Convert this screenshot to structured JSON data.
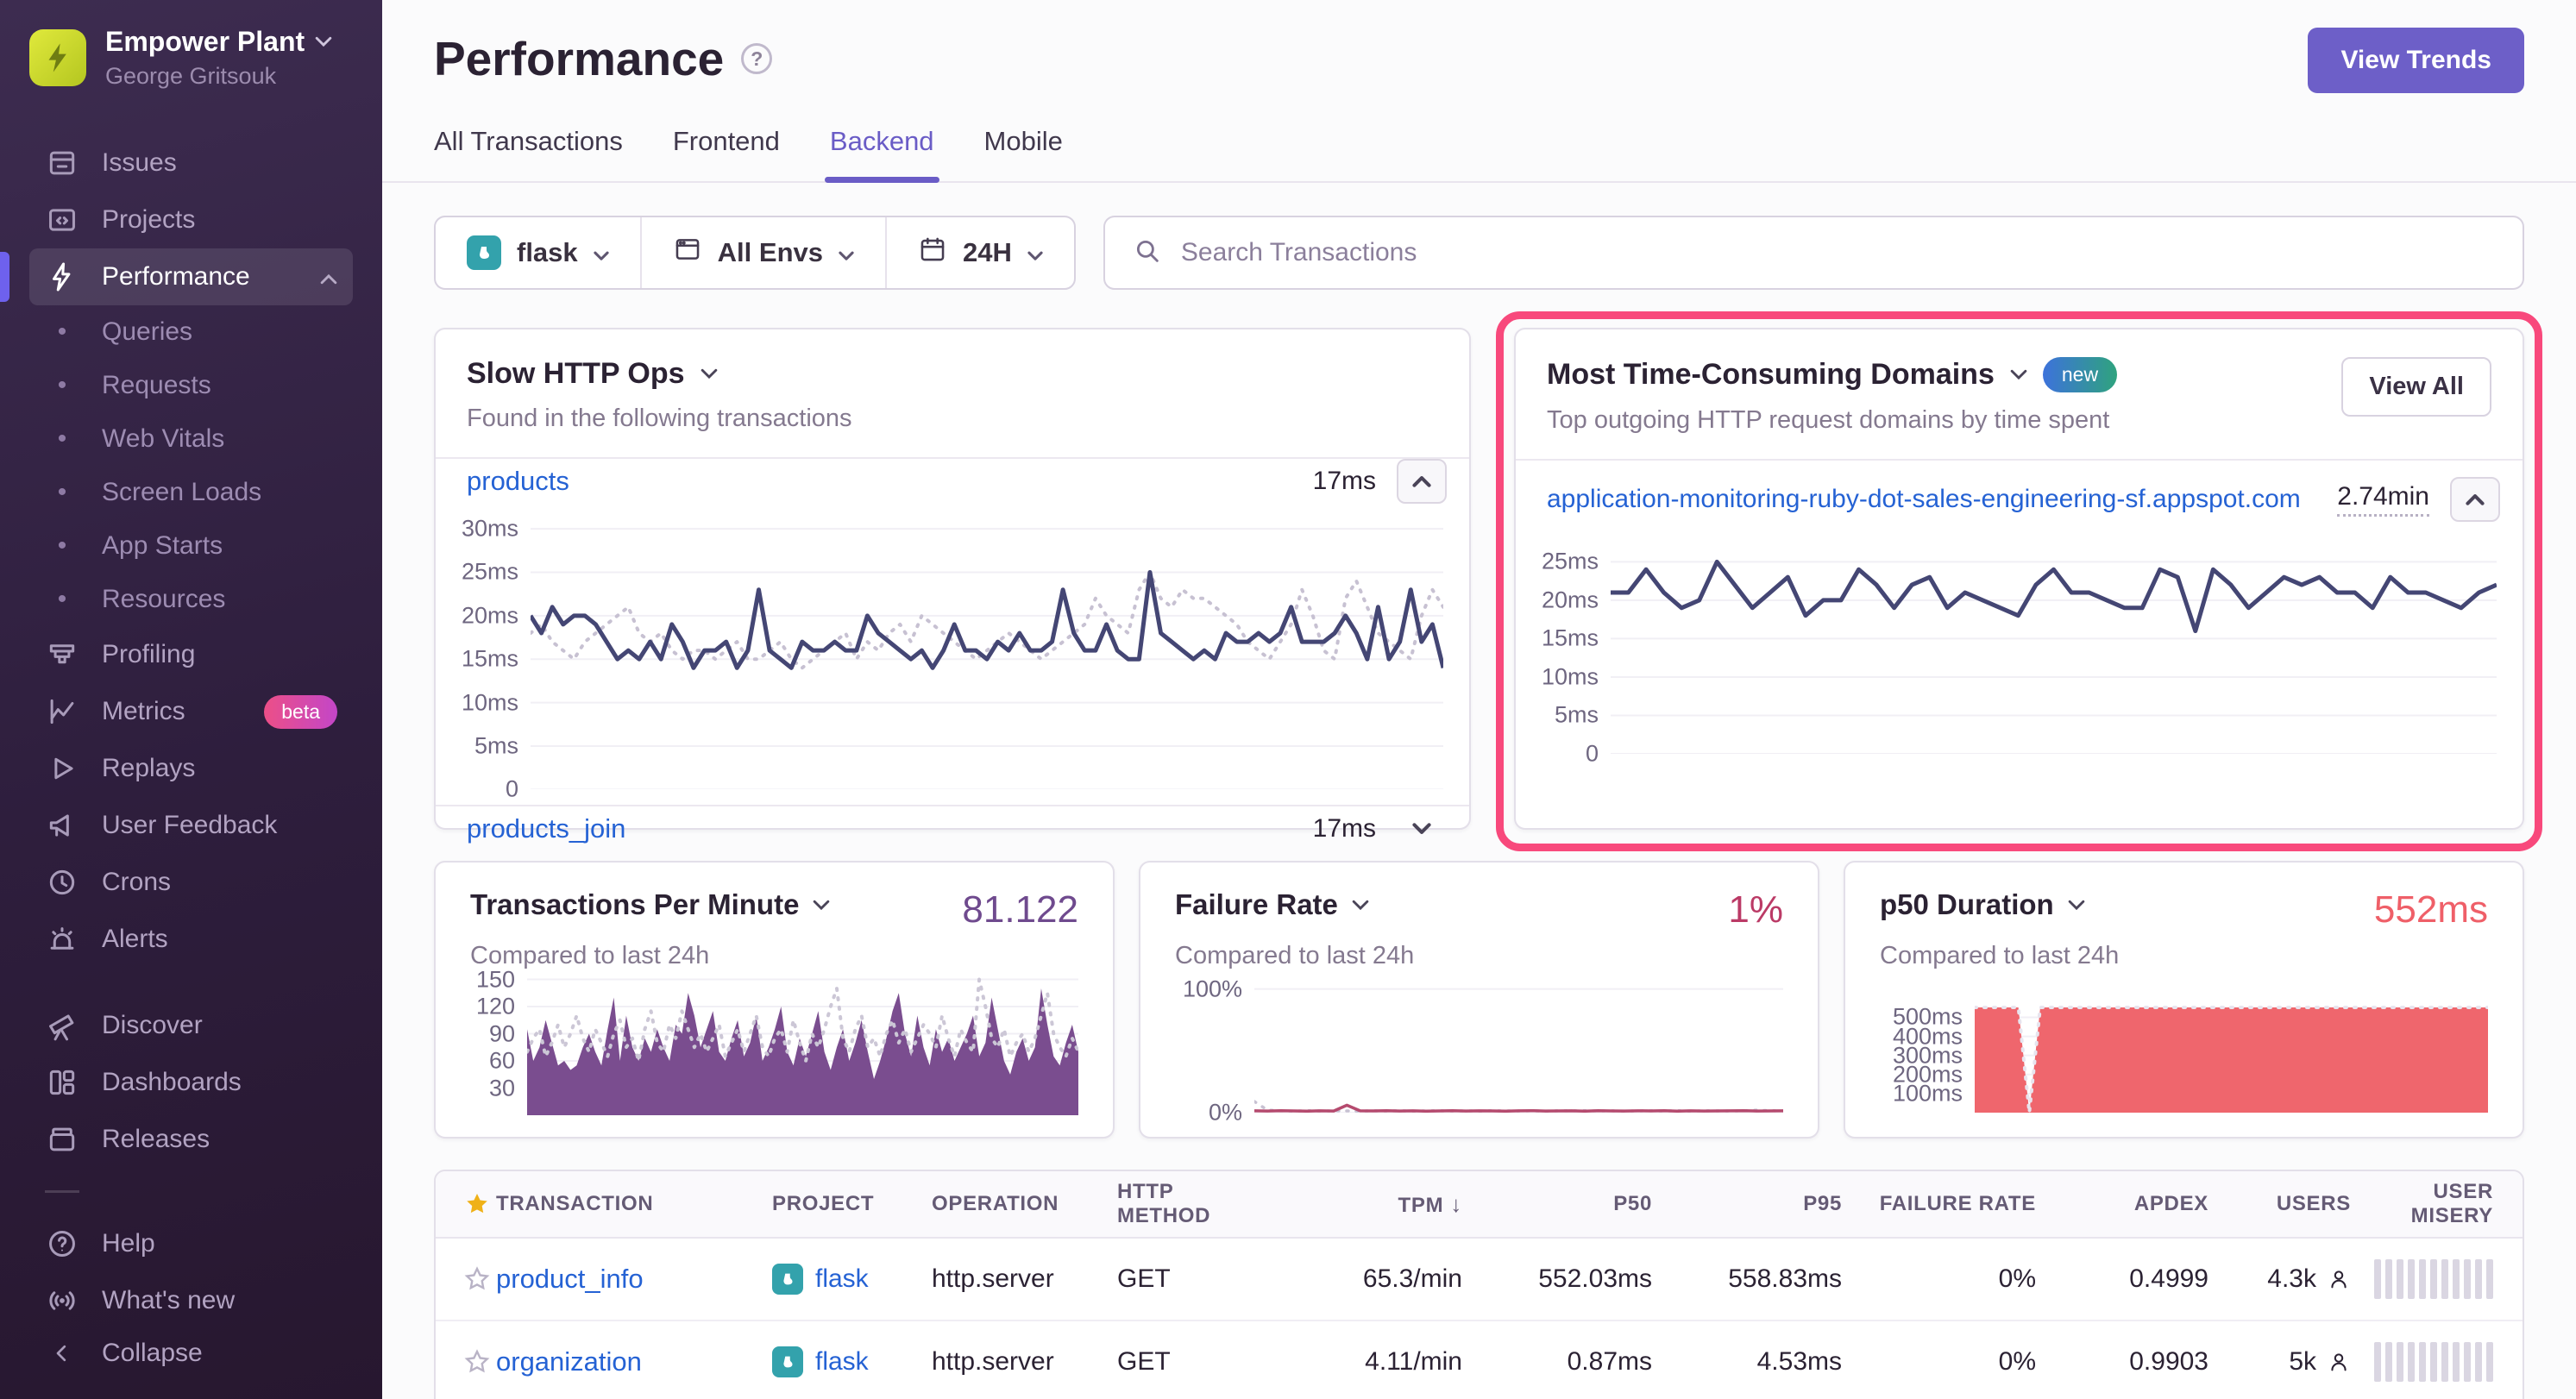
{
  "sidebar": {
    "org_name": "Empower Plant",
    "user_name": "George Gritsouk",
    "primary": [
      {
        "label": "Issues",
        "icon": "issues-icon"
      },
      {
        "label": "Projects",
        "icon": "projects-icon"
      }
    ],
    "performance": {
      "label": "Performance",
      "icon": "lightning-icon"
    },
    "performance_children": [
      {
        "label": "Queries"
      },
      {
        "label": "Requests"
      },
      {
        "label": "Web Vitals"
      },
      {
        "label": "Screen Loads"
      },
      {
        "label": "App Starts"
      },
      {
        "label": "Resources"
      }
    ],
    "secondary": [
      {
        "label": "Profiling",
        "icon": "profiling-icon"
      },
      {
        "label": "Metrics",
        "icon": "metrics-icon",
        "badge": "beta"
      },
      {
        "label": "Replays",
        "icon": "replays-icon"
      },
      {
        "label": "User Feedback",
        "icon": "megaphone-icon"
      },
      {
        "label": "Crons",
        "icon": "clock-icon"
      },
      {
        "label": "Alerts",
        "icon": "siren-icon"
      }
    ],
    "tertiary": [
      {
        "label": "Discover",
        "icon": "telescope-icon"
      },
      {
        "label": "Dashboards",
        "icon": "dashboards-icon"
      },
      {
        "label": "Releases",
        "icon": "releases-icon"
      }
    ],
    "footer": [
      {
        "label": "Help",
        "icon": "help-icon"
      },
      {
        "label": "What's new",
        "icon": "broadcast-icon"
      }
    ],
    "collapse_label": "Collapse"
  },
  "header": {
    "title": "Performance",
    "tabs": [
      "All Transactions",
      "Frontend",
      "Backend",
      "Mobile"
    ],
    "active_tab": "Backend",
    "view_trends_label": "View Trends"
  },
  "icons": {
    "help_glyph": "?"
  },
  "filters": {
    "project": "flask",
    "environment": "All Envs",
    "date_range": "24H",
    "search_placeholder": "Search Transactions"
  },
  "cards": {
    "slow_http": {
      "title": "Slow HTTP Ops",
      "subtitle": "Found in the following transactions",
      "rows": [
        {
          "name": "products",
          "value": "17ms"
        },
        {
          "name": "products_join",
          "value": "17ms"
        }
      ]
    },
    "domains": {
      "title": "Most Time-Consuming Domains",
      "badge": "new",
      "button_label": "View All",
      "subtitle": "Top outgoing HTTP request domains by time spent",
      "rows": [
        {
          "name": "application-monitoring-ruby-dot-sales-engineering-sf.appspot.com",
          "value": "2.74min"
        }
      ]
    },
    "tpm": {
      "title": "Transactions Per Minute",
      "value": "81.122",
      "subtitle": "Compared to last 24h"
    },
    "failure": {
      "title": "Failure Rate",
      "value": "1%",
      "subtitle": "Compared to last 24h"
    },
    "p50": {
      "title": "p50 Duration",
      "value": "552ms",
      "subtitle": "Compared to last 24h"
    }
  },
  "colors": {
    "accent": "#6a5cc6",
    "highlight_annotation": "#f8497c",
    "link_blue": "#2562d4",
    "navy_line": "#444674",
    "comparison_gray": "#c7c1d2",
    "purple_area": "#7a4d8f",
    "failure_pink": "#bb3a66",
    "salmon_red": "#ef666d",
    "sidebar_bg": "#2e1e3d",
    "new_badge_gradient": [
      "#3d72db",
      "#2fa37e"
    ],
    "beta_badge_gradient": [
      "#ec4f87",
      "#c346c8"
    ]
  },
  "charts": {
    "slow_http": {
      "tick_width": 96,
      "ymax": 31.5,
      "yticks": [
        {
          "v": 30,
          "label": "30ms"
        },
        {
          "v": 25,
          "label": "25ms"
        },
        {
          "v": 20,
          "label": "20ms"
        },
        {
          "v": 15,
          "label": "15ms"
        },
        {
          "v": 10,
          "label": "10ms"
        },
        {
          "v": 5,
          "label": "5ms"
        },
        {
          "v": 0,
          "label": "0"
        }
      ],
      "series": [
        {
          "kind": "line",
          "color": "#c7c1d2",
          "dash": true,
          "width": 4,
          "values": [
            18,
            19,
            17,
            16,
            15,
            17,
            18,
            19,
            20,
            21,
            18,
            17,
            18,
            16,
            15,
            16,
            16,
            15,
            16,
            17,
            15,
            15,
            16,
            17,
            15,
            14,
            15,
            16,
            17,
            18,
            15,
            17,
            16,
            18,
            19,
            17,
            20,
            19,
            18,
            17,
            16,
            15,
            16,
            17,
            18,
            17,
            16,
            15,
            16,
            17,
            18,
            19,
            22,
            20,
            19,
            18,
            23,
            25,
            22,
            21,
            23,
            22,
            22,
            21,
            20,
            19,
            17,
            16,
            15,
            17,
            19,
            23,
            20,
            16,
            15,
            22,
            24,
            21,
            18,
            17,
            16,
            15,
            20,
            23,
            21
          ]
        },
        {
          "kind": "line",
          "color": "#444674",
          "width": 5,
          "values": [
            20,
            18,
            21,
            19,
            20,
            20,
            19,
            17,
            15,
            16,
            15,
            17,
            15,
            19,
            17,
            14,
            16,
            16,
            17,
            14,
            16,
            23,
            16,
            15,
            14,
            17,
            16,
            16,
            17,
            16,
            16,
            20,
            18,
            17,
            16,
            15,
            16,
            14,
            16,
            19,
            16,
            16,
            15,
            17,
            16,
            18,
            16,
            16,
            17,
            23,
            18,
            16,
            16,
            19,
            16,
            15,
            15,
            25,
            18,
            17,
            16,
            15,
            16,
            15,
            18,
            17,
            17,
            18,
            17,
            18,
            21,
            17,
            17,
            17,
            18,
            20,
            18,
            15,
            21,
            15,
            17,
            23,
            17,
            19,
            14
          ]
        }
      ]
    },
    "domains": {
      "tick_width": 96,
      "ymax": 26.5,
      "yticks": [
        {
          "v": 25,
          "label": "25ms"
        },
        {
          "v": 20,
          "label": "20ms"
        },
        {
          "v": 15,
          "label": "15ms"
        },
        {
          "v": 10,
          "label": "10ms"
        },
        {
          "v": 5,
          "label": "5ms"
        },
        {
          "v": 0,
          "label": "0"
        }
      ],
      "series": [
        {
          "kind": "line",
          "color": "#444674",
          "width": 5,
          "values": [
            21,
            21,
            24,
            21,
            19,
            20,
            25,
            22,
            19,
            21,
            23,
            18,
            20,
            20,
            24,
            22,
            19,
            22,
            23,
            19,
            21,
            20,
            19,
            18,
            22,
            24,
            21,
            21,
            20,
            19,
            19,
            24,
            23,
            16,
            24,
            22,
            19,
            21,
            23,
            22,
            23,
            21,
            21,
            19,
            23,
            21,
            21,
            20,
            19,
            21,
            22
          ]
        }
      ]
    },
    "tpm": {
      "height": 168,
      "tick_width": 66,
      "ymax": 160,
      "yticks": [
        {
          "v": 150,
          "label": "150"
        },
        {
          "v": 120,
          "label": "120"
        },
        {
          "v": 90,
          "label": "90"
        },
        {
          "v": 60,
          "label": "60"
        },
        {
          "v": 30,
          "label": "30"
        }
      ],
      "series": [
        {
          "kind": "area",
          "color": "#7a4d8f",
          "values": [
            95,
            60,
            75,
            105,
            80,
            55,
            60,
            50,
            55,
            75,
            90,
            70,
            55,
            95,
            130,
            60,
            110,
            75,
            60,
            85,
            70,
            95,
            75,
            60,
            100,
            90,
            135,
            110,
            75,
            95,
            115,
            70,
            60,
            85,
            105,
            65,
            80,
            110,
            60,
            75,
            95,
            120,
            70,
            55,
            85,
            65,
            90,
            115,
            70,
            50,
            75,
            95,
            60,
            80,
            105,
            70,
            40,
            60,
            85,
            115,
            135,
            90,
            65,
            110,
            75,
            55,
            95,
            70,
            85,
            60,
            75,
            90,
            110,
            65,
            80,
            130,
            95,
            60,
            45,
            70,
            85,
            60,
            75,
            140,
            100,
            65,
            55,
            80,
            100,
            70
          ]
        },
        {
          "kind": "line",
          "color": "#ccc7d6",
          "dash": true,
          "width": 4,
          "values": [
            70,
            85,
            95,
            65,
            80,
            100,
            75,
            90,
            110,
            85,
            70,
            95,
            80,
            65,
            90,
            105,
            75,
            85,
            60,
            95,
            115,
            80,
            70,
            100,
            85,
            115,
            95,
            75,
            90,
            70,
            85,
            100,
            65,
            80,
            95,
            70,
            90,
            110,
            75,
            65,
            85,
            95,
            70,
            105,
            80,
            60,
            90,
            75,
            95,
            120,
            140,
            85,
            70,
            95,
            110,
            75,
            85,
            65,
            90,
            105,
            80,
            95,
            70,
            85,
            100,
            90,
            75,
            110,
            85,
            65,
            95,
            80,
            70,
            150,
            120,
            85,
            75,
            95,
            65,
            80,
            90,
            70,
            85,
            110,
            135,
            90,
            75,
            65,
            85,
            70
          ]
        }
      ]
    },
    "failure": {
      "height": 152,
      "tick_width": 92,
      "ymax": 106,
      "yticks": [
        {
          "v": 100,
          "label": "100%"
        },
        {
          "v": 0,
          "label": "0%"
        }
      ],
      "series": [
        {
          "kind": "line",
          "color": "#c7c1d2",
          "dash": true,
          "width": 3.5,
          "values": [
            9,
            2,
            1.5,
            1.2,
            1.6,
            1.3,
            1.5,
            1.4,
            1.2,
            1.5,
            1.3,
            1.6,
            1.2,
            1.4,
            1.5,
            1.3,
            1.5,
            1.2,
            1.6,
            1.4,
            1.3,
            1.5,
            1.2,
            1.5,
            1.4,
            1.6,
            1.3,
            1.5,
            1.2,
            1.4,
            1.5,
            1.3,
            1.6,
            1.2,
            1.5,
            1.4,
            1.3,
            1.5,
            2,
            1.6,
            1.4
          ]
        },
        {
          "kind": "line",
          "color": "#b54a6e",
          "width": 3.5,
          "values": [
            1.5,
            1.3,
            1.6,
            1.4,
            1.2,
            1.5,
            1.3,
            6,
            1.5,
            1.4,
            1.6,
            1.3,
            1.5,
            1.2,
            1.4,
            1.6,
            1.3,
            1.5,
            1.4,
            1.2,
            1.5,
            1.6,
            1.3,
            1.4,
            1.5,
            1.2,
            1.6,
            1.4,
            1.3,
            1.5,
            1.4,
            1.6,
            1.2,
            1.5,
            1.3,
            1.4,
            1.5,
            1.6,
            1.3,
            1.4,
            1.5
          ]
        }
      ]
    },
    "p50": {
      "height": 130,
      "tick_width": 110,
      "ymax": 588,
      "yticks": [
        {
          "v": 500,
          "label": "500ms"
        },
        {
          "v": 400,
          "label": "400ms"
        },
        {
          "v": 300,
          "label": "300ms"
        },
        {
          "v": 200,
          "label": "200ms"
        },
        {
          "v": 100,
          "label": "100ms"
        }
      ],
      "series": [
        {
          "kind": "area",
          "color": "#ef666d",
          "values": [
            552,
            552,
            552,
            552,
            552,
            0,
            552,
            552,
            552,
            552,
            552,
            552,
            552,
            552,
            552,
            552,
            552,
            552,
            552,
            552,
            552,
            552,
            552,
            552,
            552,
            552,
            552,
            552,
            552,
            552,
            552,
            552,
            552,
            552,
            552,
            552,
            552,
            552,
            552,
            552,
            552,
            552,
            552,
            552,
            552,
            552,
            552,
            552
          ]
        },
        {
          "kind": "line",
          "color": "#e7e4ee",
          "dash": true,
          "width": 4,
          "values": [
            552,
            552,
            552,
            552,
            552,
            0,
            552,
            552,
            552,
            552,
            552,
            552,
            552,
            552,
            552,
            552,
            552,
            552,
            552,
            552,
            552,
            552,
            552,
            552,
            552,
            552,
            552,
            552,
            552,
            552,
            552,
            552,
            552,
            552,
            552,
            552,
            552,
            552,
            552,
            552,
            552,
            552,
            552,
            552,
            552,
            552,
            552,
            552
          ]
        }
      ]
    }
  },
  "table": {
    "columns": [
      "TRANSACTION",
      "PROJECT",
      "OPERATION",
      "HTTP METHOD",
      "TPM",
      "P50",
      "P95",
      "FAILURE RATE",
      "APDEX",
      "USERS",
      "USER MISERY"
    ],
    "sorted_column": "TPM",
    "sort_indicator": "↓",
    "rows": [
      {
        "transaction": "product_info",
        "project": "flask",
        "operation": "http.server",
        "http_method": "GET",
        "tpm": "65.3/min",
        "p50": "552.03ms",
        "p95": "558.83ms",
        "failure_rate": "0%",
        "apdex": "0.4999",
        "users": "4.3k"
      },
      {
        "transaction": "organization",
        "project": "flask",
        "operation": "http.server",
        "http_method": "GET",
        "tpm": "4.11/min",
        "p50": "0.87ms",
        "p95": "4.53ms",
        "failure_rate": "0%",
        "apdex": "0.9903",
        "users": "5k"
      }
    ]
  }
}
